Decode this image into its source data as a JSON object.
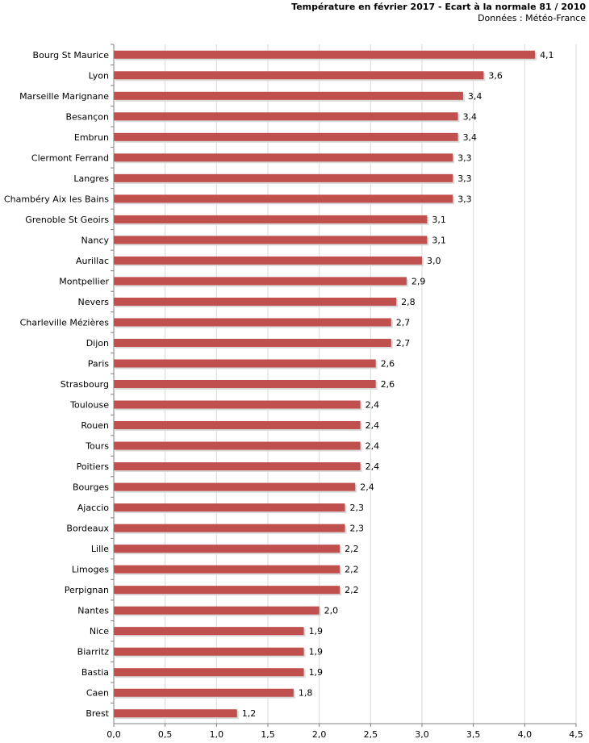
{
  "header": {
    "title": "Température en février 2017 - Ecart à la normale 81 / 2010",
    "source": "Données : Météo-France"
  },
  "colors": {
    "bar": "#c0504d",
    "bar_shadow": "#d9d9d9",
    "grid": "#d9d9d9",
    "axis": "#808080"
  },
  "chart_data": {
    "type": "bar",
    "orientation": "horizontal",
    "title": "Température en février 2017 - Ecart à la normale 81 / 2010",
    "subtitle": "Données : Météo-France",
    "categories": [
      "Bourg St Maurice",
      "Lyon",
      "Marseille Marignane",
      "Besançon",
      "Embrun",
      "Clermont Ferrand",
      "Langres",
      "Chambéry Aix les Bains",
      "Grenoble St Geoirs",
      "Nancy",
      "Aurillac",
      "Montpellier",
      "Nevers",
      "Charleville Mézières",
      "Dijon",
      "Paris",
      "Strasbourg",
      "Toulouse",
      "Rouen",
      "Tours",
      "Poitiers",
      "Bourges",
      "Ajaccio",
      "Bordeaux",
      "Lille",
      "Limoges",
      "Perpignan",
      "Nantes",
      "Nice",
      "Biarritz",
      "Bastia",
      "Caen",
      "Brest"
    ],
    "values": [
      4.1,
      3.6,
      3.4,
      3.35,
      3.35,
      3.3,
      3.3,
      3.3,
      3.05,
      3.05,
      3.0,
      2.85,
      2.75,
      2.7,
      2.7,
      2.55,
      2.55,
      2.4,
      2.4,
      2.4,
      2.4,
      2.35,
      2.25,
      2.25,
      2.2,
      2.2,
      2.2,
      2.0,
      1.85,
      1.85,
      1.85,
      1.75,
      1.2
    ],
    "value_labels": [
      "4,1",
      "3,6",
      "3,4",
      "3,4",
      "3,4",
      "3,3",
      "3,3",
      "3,3",
      "3,1",
      "3,1",
      "3,0",
      "2,9",
      "2,8",
      "2,7",
      "2,7",
      "2,6",
      "2,6",
      "2,4",
      "2,4",
      "2,4",
      "2,4",
      "2,4",
      "2,3",
      "2,3",
      "2,2",
      "2,2",
      "2,2",
      "2,0",
      "1,9",
      "1,9",
      "1,9",
      "1,8",
      "1,2"
    ],
    "x_ticks": [
      "0,0",
      "0,5",
      "1,0",
      "1,5",
      "2,0",
      "2,5",
      "3,0",
      "3,5",
      "4,0",
      "4,5"
    ],
    "xlim": [
      0,
      4.5
    ],
    "xlabel": "",
    "ylabel": "",
    "grid": true,
    "legend": "none"
  }
}
